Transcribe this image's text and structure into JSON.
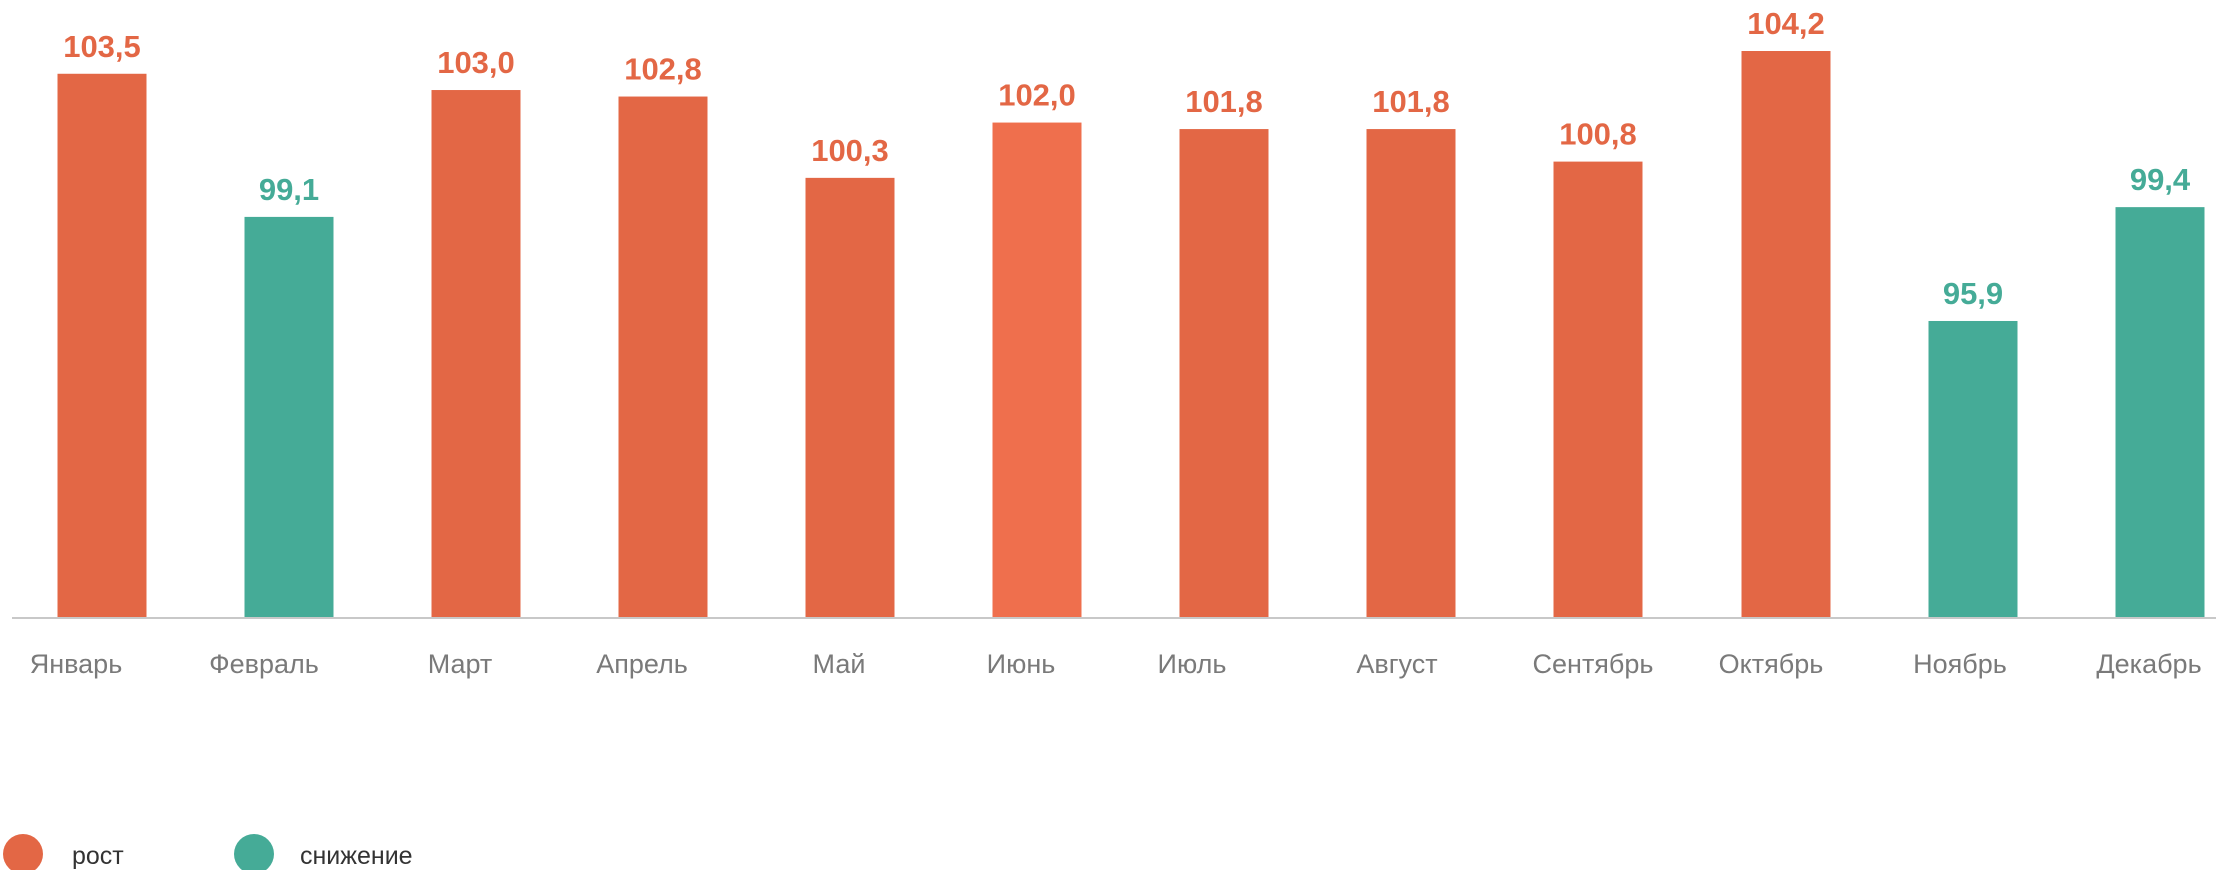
{
  "chart_data": {
    "type": "bar",
    "categories": [
      "Январь",
      "Февраль",
      "Март",
      "Апрель",
      "Май",
      "Июнь",
      "Июль",
      "Август",
      "Сентябрь",
      "Октябрь",
      "Ноябрь",
      "Декабрь"
    ],
    "values": [
      103.5,
      99.1,
      103.0,
      102.8,
      100.3,
      102.0,
      101.8,
      101.8,
      100.8,
      104.2,
      95.9,
      99.4
    ],
    "value_labels": [
      "103,5",
      "99,1",
      "103,0",
      "102,8",
      "100,3",
      "102,0",
      "101,8",
      "101,8",
      "100,8",
      "104,2",
      "95,9",
      "99,4"
    ],
    "kinds": [
      "rise",
      "fall",
      "rise",
      "rise",
      "rise",
      "rise",
      "rise",
      "rise",
      "rise",
      "rise",
      "fall",
      "fall"
    ],
    "ylim": [
      86.8,
      104.2
    ],
    "grid": false,
    "legend_placement": "bottom-left",
    "legend": [
      {
        "key": "rise",
        "label": "рост",
        "color": "#E36745"
      },
      {
        "key": "fall",
        "label": "снижение",
        "color": "#45AB97"
      }
    ],
    "colors": {
      "rise": "#E36745",
      "fall": "#45AB97",
      "highlight": "#EF6F4D",
      "axis": "#C8C8C8",
      "tick_label": "#7a7a7a"
    },
    "highlight_index": 5
  }
}
